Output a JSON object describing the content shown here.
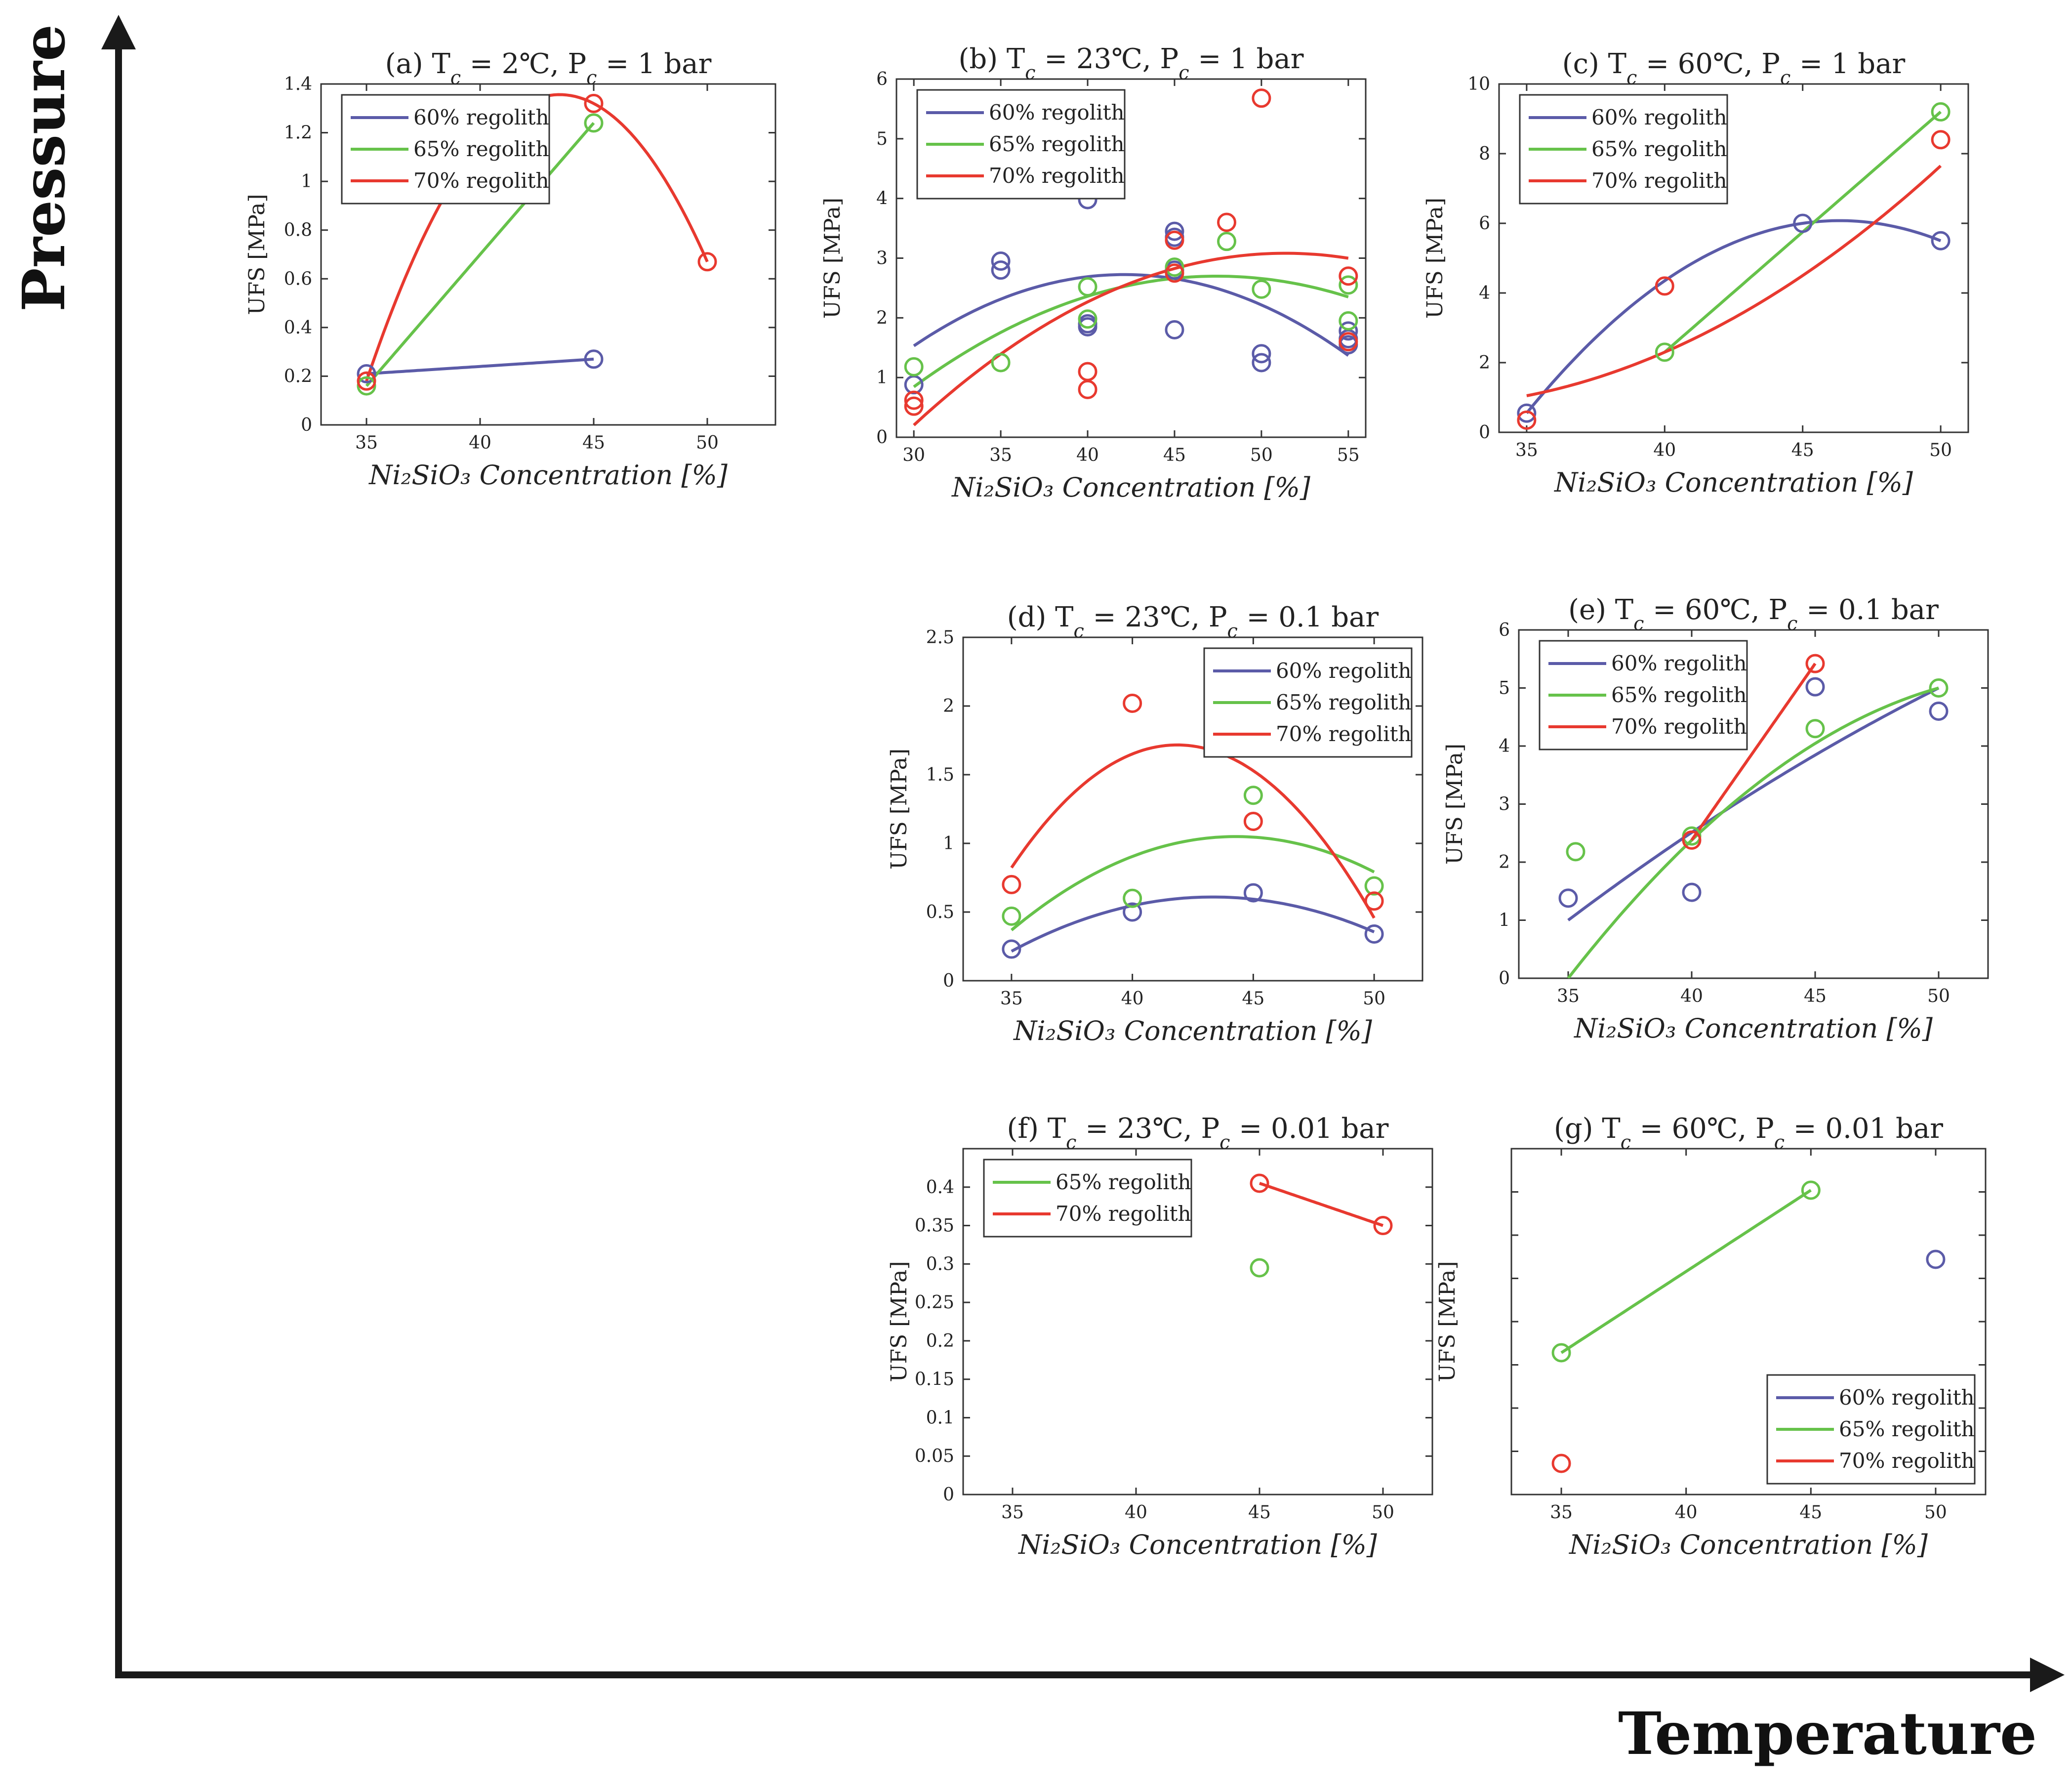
{
  "axes_labels": {
    "pressure": "Pressure",
    "temperature": "Temperature"
  },
  "colors": {
    "s60": "#5b5ba8",
    "s65": "#66c24a",
    "s70": "#e8392f",
    "axis": "#1a1a1a"
  },
  "chart_data": [
    {
      "id": "a",
      "type": "scatter",
      "title": "(a) T_c = 2℃, P_c = 1 bar",
      "xlabel": "Ni₂SiO₃ Concentration [%]",
      "ylabel": "UFS [MPa]",
      "xlim": [
        33,
        53
      ],
      "ylim": [
        0,
        1.4
      ],
      "xticks": [
        35,
        40,
        45,
        50
      ],
      "yticks": [
        0,
        0.2,
        0.4,
        0.6,
        0.8,
        1,
        1.2,
        1.4
      ],
      "ytick_labels": [
        "0",
        "0.2",
        "0.4",
        "0.6",
        "0.8",
        "1",
        "1.2",
        "1.4"
      ],
      "grid": false,
      "legend": {
        "placement": "top-left",
        "entries": [
          "60% regolith",
          "65% regolith",
          "70% regolith"
        ]
      },
      "series": [
        {
          "name": "60% regolith",
          "color_key": "s60",
          "x": [
            35,
            45
          ],
          "y": [
            0.21,
            0.27
          ],
          "fit": "linear",
          "fit_range": [
            35,
            45
          ]
        },
        {
          "name": "65% regolith",
          "color_key": "s65",
          "x": [
            35,
            45
          ],
          "y": [
            0.16,
            1.24
          ],
          "fit": "linear",
          "fit_range": [
            35,
            45
          ]
        },
        {
          "name": "70% regolith",
          "color_key": "s70",
          "x": [
            35,
            45,
            50
          ],
          "y": [
            0.18,
            1.32,
            0.67
          ],
          "fit": "quadratic",
          "fit_range": [
            35,
            50
          ]
        }
      ]
    },
    {
      "id": "b",
      "type": "scatter",
      "title": "(b) T_c = 23℃, P_c = 1 bar",
      "xlabel": "Ni₂SiO₃ Concentration [%]",
      "ylabel": "UFS [MPa]",
      "xlim": [
        29,
        56
      ],
      "ylim": [
        0,
        6
      ],
      "xticks": [
        30,
        35,
        40,
        45,
        50,
        55
      ],
      "yticks": [
        0,
        1,
        2,
        3,
        4,
        5,
        6
      ],
      "ytick_labels": [
        "0",
        "1",
        "2",
        "3",
        "4",
        "5",
        "6"
      ],
      "grid": false,
      "legend": {
        "placement": "top-left",
        "entries": [
          "60% regolith",
          "65% regolith",
          "70% regolith"
        ]
      },
      "series": [
        {
          "name": "60% regolith",
          "color_key": "s60",
          "x": [
            30,
            35,
            35,
            40,
            40,
            40,
            45,
            45,
            45,
            45,
            50,
            50,
            55,
            55,
            55
          ],
          "y": [
            0.88,
            2.8,
            2.95,
            3.98,
            1.85,
            1.9,
            3.45,
            3.35,
            2.8,
            1.8,
            1.4,
            1.25,
            1.78,
            1.65,
            1.55
          ],
          "fit": "quadratic",
          "fit_range": [
            30,
            55
          ]
        },
        {
          "name": "65% regolith",
          "color_key": "s65",
          "x": [
            30,
            35,
            40,
            40,
            45,
            48,
            50,
            55,
            55
          ],
          "y": [
            1.18,
            1.25,
            2.52,
            1.98,
            2.85,
            3.28,
            2.48,
            2.55,
            1.95
          ],
          "fit": "quadratic",
          "fit_range": [
            30,
            55
          ]
        },
        {
          "name": "70% regolith",
          "color_key": "s70",
          "x": [
            30,
            30,
            40,
            40,
            45,
            45,
            48,
            50,
            55,
            55
          ],
          "y": [
            0.52,
            0.62,
            1.1,
            0.8,
            3.3,
            2.75,
            3.6,
            5.68,
            2.7,
            1.6
          ],
          "fit": "quadratic",
          "fit_range": [
            30,
            55
          ]
        }
      ]
    },
    {
      "id": "c",
      "type": "scatter",
      "title": "(c) T_c = 60℃, P_c = 1 bar",
      "xlabel": "Ni₂SiO₃ Concentration [%]",
      "ylabel": "UFS [MPa]",
      "xlim": [
        34,
        51
      ],
      "ylim": [
        0,
        10
      ],
      "xticks": [
        35,
        40,
        45,
        50
      ],
      "yticks": [
        0,
        2,
        4,
        6,
        8,
        10
      ],
      "ytick_labels": [
        "0",
        "2",
        "4",
        "6",
        "8",
        "10"
      ],
      "grid": false,
      "legend": {
        "placement": "top-left",
        "entries": [
          "60% regolith",
          "65% regolith",
          "70% regolith"
        ]
      },
      "series": [
        {
          "name": "60% regolith",
          "color_key": "s60",
          "x": [
            35,
            45,
            50
          ],
          "y": [
            0.55,
            6.0,
            5.5
          ],
          "fit": "quadratic",
          "fit_range": [
            35,
            50
          ]
        },
        {
          "name": "65% regolith",
          "color_key": "s65",
          "x": [
            40,
            50
          ],
          "y": [
            2.3,
            9.2
          ],
          "fit": "linear",
          "fit_range": [
            40,
            50
          ]
        },
        {
          "name": "70% regolith",
          "color_key": "s70",
          "x": [
            35,
            40,
            50
          ],
          "y": [
            0.35,
            4.2,
            8.4
          ],
          "fit": "quadratic-custom",
          "fit_range": [
            35,
            50
          ],
          "fit_points": [
            [
              35,
              1.05
            ],
            [
              40,
              2.3
            ],
            [
              50,
              7.65
            ]
          ]
        }
      ]
    },
    {
      "id": "d",
      "type": "scatter",
      "title": "(d) T_c = 23℃, P_c = 0.1 bar",
      "xlabel": "Ni₂SiO₃ Concentration [%]",
      "ylabel": "UFS [MPa]",
      "xlim": [
        33,
        52
      ],
      "ylim": [
        0,
        2.5
      ],
      "xticks": [
        35,
        40,
        45,
        50
      ],
      "yticks": [
        0,
        0.5,
        1,
        1.5,
        2,
        2.5
      ],
      "ytick_labels": [
        "0",
        "0.5",
        "1",
        "1.5",
        "2",
        "2.5"
      ],
      "grid": false,
      "legend": {
        "placement": "top-right",
        "entries": [
          "60% regolith",
          "65% regolith",
          "70% regolith"
        ]
      },
      "series": [
        {
          "name": "60% regolith",
          "color_key": "s60",
          "x": [
            35,
            40,
            45,
            50
          ],
          "y": [
            0.23,
            0.5,
            0.64,
            0.34
          ],
          "fit": "quadratic",
          "fit_range": [
            35,
            50
          ]
        },
        {
          "name": "65% regolith",
          "color_key": "s65",
          "x": [
            35,
            40,
            45,
            50
          ],
          "y": [
            0.47,
            0.6,
            1.35,
            0.69
          ],
          "fit": "quadratic",
          "fit_range": [
            35,
            50
          ]
        },
        {
          "name": "70% regolith",
          "color_key": "s70",
          "x": [
            35,
            40,
            45,
            50
          ],
          "y": [
            0.7,
            2.02,
            1.16,
            0.58
          ],
          "fit": "quadratic",
          "fit_range": [
            35,
            50
          ]
        }
      ]
    },
    {
      "id": "e",
      "type": "scatter",
      "title": "(e) T_c = 60℃, P_c = 0.1 bar",
      "xlabel": "Ni₂SiO₃ Concentration [%]",
      "ylabel": "UFS [MPa]",
      "xlim": [
        33,
        52
      ],
      "ylim": [
        0,
        6
      ],
      "xticks": [
        35,
        40,
        45,
        50
      ],
      "yticks": [
        0,
        1,
        2,
        3,
        4,
        5,
        6
      ],
      "ytick_labels": [
        "0",
        "1",
        "2",
        "3",
        "4",
        "5",
        "6"
      ],
      "grid": false,
      "legend": {
        "placement": "top-left",
        "entries": [
          "60% regolith",
          "65% regolith",
          "70% regolith"
        ]
      },
      "series": [
        {
          "name": "60% regolith",
          "color_key": "s60",
          "x": [
            35,
            40,
            45,
            50
          ],
          "y": [
            1.38,
            1.48,
            5.02,
            4.6
          ],
          "fit": "quadratic-custom",
          "fit_range": [
            35,
            50
          ],
          "fit_points": [
            [
              35,
              1.0
            ],
            [
              42.5,
              3.2
            ],
            [
              50,
              5.0
            ]
          ]
        },
        {
          "name": "65% regolith",
          "color_key": "s65",
          "x": [
            35.3,
            40,
            45,
            50
          ],
          "y": [
            2.18,
            2.45,
            4.3,
            5.0
          ],
          "fit": "quadratic-custom",
          "fit_range": [
            35,
            50
          ],
          "fit_points": [
            [
              35,
              0.0
            ],
            [
              42.5,
              3.3
            ],
            [
              50,
              5.0
            ]
          ]
        },
        {
          "name": "70% regolith",
          "color_key": "s70",
          "x": [
            40,
            45
          ],
          "y": [
            2.38,
            5.42
          ],
          "fit": "linear",
          "fit_range": [
            40,
            45
          ]
        }
      ]
    },
    {
      "id": "f",
      "type": "scatter",
      "title": "(f) T_c = 23℃, P_c = 0.01 bar",
      "xlabel": "Ni₂SiO₃ Concentration [%]",
      "ylabel": "UFS [MPa]",
      "xlim": [
        33,
        52
      ],
      "ylim": [
        0,
        0.45
      ],
      "xticks": [
        35,
        40,
        45,
        50
      ],
      "yticks": [
        0,
        0.05,
        0.1,
        0.15,
        0.2,
        0.25,
        0.3,
        0.35,
        0.4
      ],
      "ytick_labels": [
        "0",
        "0.05",
        "0.1",
        "0.15",
        "0.2",
        "0.25",
        "0.3",
        "0.35",
        "0.4"
      ],
      "grid": false,
      "legend": {
        "placement": "top-left",
        "entries": [
          "65% regolith",
          "70% regolith"
        ]
      },
      "series": [
        {
          "name": "65% regolith",
          "color_key": "s65",
          "x": [
            45
          ],
          "y": [
            0.295
          ],
          "fit": "none"
        },
        {
          "name": "70% regolith",
          "color_key": "s70",
          "x": [
            45,
            50
          ],
          "y": [
            0.405,
            0.35
          ],
          "fit": "linear",
          "fit_range": [
            45,
            50
          ]
        }
      ]
    },
    {
      "id": "g",
      "type": "scatter",
      "title": "(g) T_c = 60℃, P_c = 0.01 bar",
      "xlabel": "Ni₂SiO₃ Concentration [%]",
      "ylabel": "UFS [MPa]",
      "xlim": [
        33,
        52
      ],
      "ylim": [
        0,
        1
      ],
      "xticks": [
        35,
        40,
        45,
        50
      ],
      "yticks": [
        0.125,
        0.25,
        0.375,
        0.5,
        0.625,
        0.75,
        0.875
      ],
      "ytick_labels": [],
      "grid": false,
      "legend": {
        "placement": "bottom-right",
        "entries": [
          "60% regolith",
          "65% regolith",
          "70% regolith"
        ]
      },
      "series": [
        {
          "name": "60% regolith",
          "color_key": "s60",
          "x": [
            50
          ],
          "y": [
            0.68
          ],
          "fit": "none"
        },
        {
          "name": "65% regolith",
          "color_key": "s65",
          "x": [
            35,
            45
          ],
          "y": [
            0.41,
            0.88
          ],
          "fit": "linear",
          "fit_range": [
            35,
            45
          ]
        },
        {
          "name": "70% regolith",
          "color_key": "s70",
          "x": [
            35
          ],
          "y": [
            0.09
          ],
          "fit": "none"
        }
      ]
    }
  ]
}
